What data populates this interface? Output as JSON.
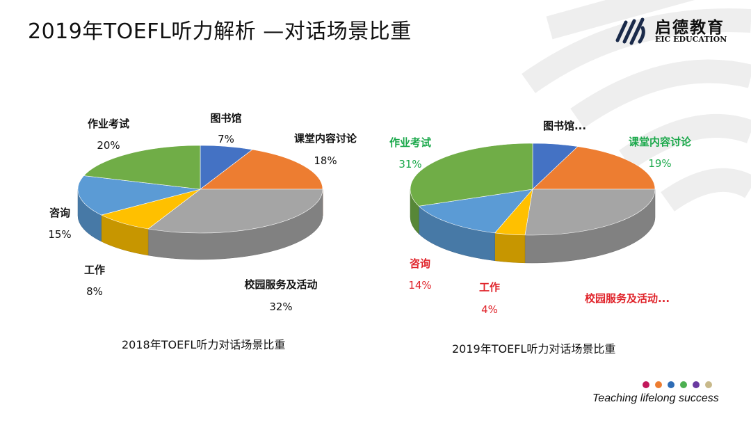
{
  "slide": {
    "title": "2019年TOEFL听力解析 —对话场景比重",
    "brand_name": "启德教育",
    "brand_sub": "EIC EDUCATION",
    "tagline": "Teaching lifelong success",
    "dot_colors": [
      "#c2185b",
      "#ed7d31",
      "#2e6cb5",
      "#4caf50",
      "#6a3aa0",
      "#c8b98a"
    ]
  },
  "chart_data": [
    {
      "type": "pie",
      "title": "2018年TOEFL听力对话场景比重",
      "labels": [
        "图书馆",
        "课堂内容讨论",
        "校园服务及活动",
        "工作",
        "咨询",
        "作业考试"
      ],
      "values": [
        7,
        18,
        32,
        8,
        15,
        20
      ],
      "value_labels": [
        "7%",
        "18%",
        "32%",
        "8%",
        "15%",
        "20%"
      ],
      "colors": [
        "#4472c4",
        "#ed7d31",
        "#a5a5a5",
        "#ffc000",
        "#5b9bd5",
        "#70ad47"
      ],
      "label_colors": [
        "#111111",
        "#111111",
        "#111111",
        "#111111",
        "#111111",
        "#111111"
      ]
    },
    {
      "type": "pie",
      "title": "2019年TOEFL听力对话场景比重",
      "labels": [
        "图书馆...",
        "课堂内容讨论",
        "校园服务及活动...",
        "工作",
        "咨询",
        "作业考试"
      ],
      "values": [
        6,
        19,
        26,
        4,
        14,
        31
      ],
      "value_labels": [
        "",
        "19%",
        "",
        "4%",
        "14%",
        "31%"
      ],
      "colors": [
        "#4472c4",
        "#ed7d31",
        "#a5a5a5",
        "#ffc000",
        "#5b9bd5",
        "#70ad47"
      ],
      "label_colors": [
        "#111111",
        "#1aa84a",
        "#e0242b",
        "#e0242b",
        "#e0242b",
        "#1aa84a"
      ]
    }
  ]
}
